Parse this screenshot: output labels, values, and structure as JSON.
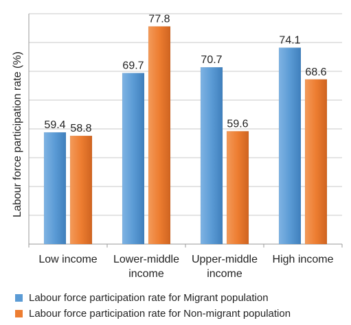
{
  "chart_data": {
    "type": "bar",
    "categories": [
      [
        "Low income"
      ],
      [
        "Lower-middle",
        "income"
      ],
      [
        "Upper-middle",
        "income"
      ],
      [
        "High income"
      ]
    ],
    "series": [
      {
        "name": "Labour force participation rate for Migrant population",
        "values": [
          59.4,
          69.7,
          70.7,
          74.1
        ],
        "color": "#5B9BD5"
      },
      {
        "name": "Labour force participation rate for Non-migrant population",
        "values": [
          58.8,
          77.8,
          59.6,
          68.6
        ],
        "color": "#ED7D31"
      }
    ],
    "ylabel": "Labour force participation rate (%)",
    "ylim": [
      40,
      80
    ],
    "y_step": 5,
    "y_tick_labels_shown": false,
    "grid": true,
    "legend_position": "bottom"
  }
}
